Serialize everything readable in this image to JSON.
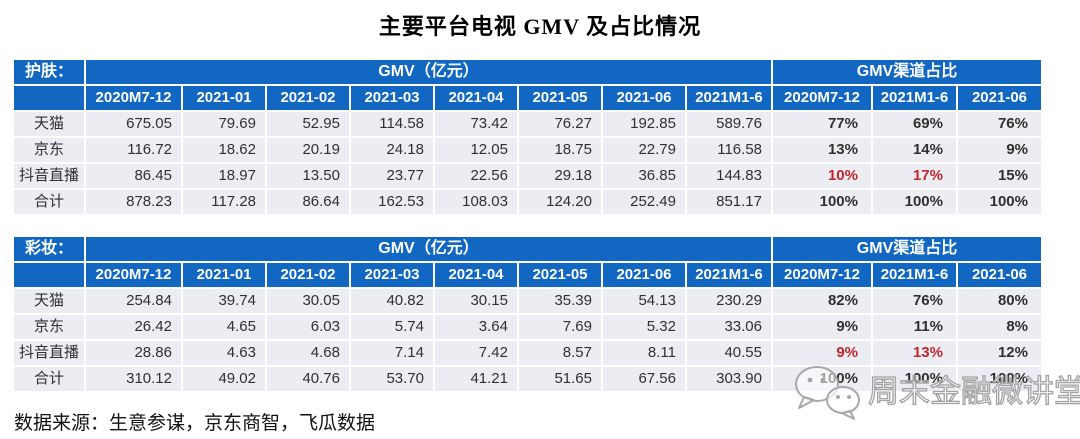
{
  "title": "主要平台电视 GMV 及占比情况",
  "footer": {
    "source_note": "数据来源：生意参谋，京东商智，飞瓜数据"
  },
  "watermark": {
    "text": "周末金融微讲堂",
    "icon": "wechat-icon"
  },
  "colors": {
    "header_blue": "#1167c1",
    "cell_background": "#ecedf3",
    "highlight_red": "#c2262c",
    "percent_text": "#141414",
    "number_text": "#303030"
  },
  "chart_data": [
    {
      "type": "table",
      "category_label": "护肤：",
      "gmv_group_header": "GMV（亿元）",
      "share_group_header": "GMV渠道占比",
      "gmv_columns": [
        "2020M7-12",
        "2021-01",
        "2021-02",
        "2021-03",
        "2021-04",
        "2021-05",
        "2021-06",
        "2021M1-6"
      ],
      "share_columns": [
        "2020M7-12",
        "2021M1-6",
        "2021-06"
      ],
      "rows": [
        {
          "label": "天猫",
          "gmv": [
            "675.05",
            "79.69",
            "52.95",
            "114.58",
            "73.42",
            "76.27",
            "192.85",
            "589.76"
          ],
          "share": [
            "77%",
            "69%",
            "76%"
          ],
          "share_red": [
            false,
            false,
            false
          ]
        },
        {
          "label": "京东",
          "gmv": [
            "116.72",
            "18.62",
            "20.19",
            "24.18",
            "12.05",
            "18.75",
            "22.79",
            "116.58"
          ],
          "share": [
            "13%",
            "14%",
            "9%"
          ],
          "share_red": [
            false,
            false,
            false
          ]
        },
        {
          "label": "抖音直播",
          "gmv": [
            "86.45",
            "18.97",
            "13.50",
            "23.77",
            "22.56",
            "29.18",
            "36.85",
            "144.83"
          ],
          "share": [
            "10%",
            "17%",
            "15%"
          ],
          "share_red": [
            true,
            true,
            false
          ]
        },
        {
          "label": "合计",
          "gmv": [
            "878.23",
            "117.28",
            "86.64",
            "162.53",
            "108.03",
            "124.20",
            "252.49",
            "851.17"
          ],
          "share": [
            "100%",
            "100%",
            "100%"
          ],
          "share_red": [
            false,
            false,
            false
          ]
        }
      ]
    },
    {
      "type": "table",
      "category_label": "彩妆：",
      "gmv_group_header": "GMV（亿元）",
      "share_group_header": "GMV渠道占比",
      "gmv_columns": [
        "2020M7-12",
        "2021-01",
        "2021-02",
        "2021-03",
        "2021-04",
        "2021-05",
        "2021-06",
        "2021M1-6"
      ],
      "share_columns": [
        "2020M7-12",
        "2021M1-6",
        "2021-06"
      ],
      "rows": [
        {
          "label": "天猫",
          "gmv": [
            "254.84",
            "39.74",
            "30.05",
            "40.82",
            "30.15",
            "35.39",
            "54.13",
            "230.29"
          ],
          "share": [
            "82%",
            "76%",
            "80%"
          ],
          "share_red": [
            false,
            false,
            false
          ]
        },
        {
          "label": "京东",
          "gmv": [
            "26.42",
            "4.65",
            "6.03",
            "5.74",
            "3.64",
            "7.69",
            "5.32",
            "33.06"
          ],
          "share": [
            "9%",
            "11%",
            "8%"
          ],
          "share_red": [
            false,
            false,
            false
          ]
        },
        {
          "label": "抖音直播",
          "gmv": [
            "28.86",
            "4.63",
            "4.68",
            "7.14",
            "7.42",
            "8.57",
            "8.11",
            "40.55"
          ],
          "share": [
            "9%",
            "13%",
            "12%"
          ],
          "share_red": [
            true,
            true,
            false
          ]
        },
        {
          "label": "合计",
          "gmv": [
            "310.12",
            "49.02",
            "40.76",
            "53.70",
            "41.21",
            "51.65",
            "67.56",
            "303.90"
          ],
          "share": [
            "100%",
            "100%",
            "100%"
          ],
          "share_red": [
            false,
            false,
            false
          ]
        }
      ]
    }
  ]
}
